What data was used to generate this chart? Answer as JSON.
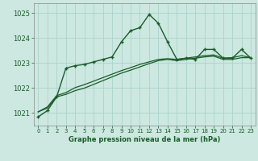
{
  "bg_color": "#cce8e0",
  "grid_color": "#aad4cc",
  "line_color": "#1a5c2a",
  "title": "Graphe pression niveau de la mer (hPa)",
  "xlim": [
    -0.5,
    23.5
  ],
  "ylim": [
    1020.5,
    1025.4
  ],
  "yticks": [
    1021,
    1022,
    1023,
    1024,
    1025
  ],
  "xticks": [
    0,
    1,
    2,
    3,
    4,
    5,
    6,
    7,
    8,
    9,
    10,
    11,
    12,
    13,
    14,
    15,
    16,
    17,
    18,
    19,
    20,
    21,
    22,
    23
  ],
  "series1_x": [
    0,
    1,
    2,
    3,
    4,
    5,
    6,
    7,
    8,
    9,
    10,
    11,
    12,
    13,
    14,
    15,
    16,
    17,
    18,
    19,
    20,
    21,
    22,
    23
  ],
  "series1_y": [
    1020.85,
    1021.1,
    1021.65,
    1022.8,
    1022.9,
    1022.95,
    1023.05,
    1023.15,
    1023.25,
    1023.85,
    1024.3,
    1024.42,
    1024.95,
    1024.6,
    1023.85,
    1023.15,
    1023.2,
    1023.15,
    1023.55,
    1023.55,
    1023.2,
    1023.2,
    1023.55,
    1023.2
  ],
  "series2_x": [
    0,
    1,
    2,
    3,
    4,
    5,
    6,
    7,
    8,
    9,
    10,
    11,
    12,
    13,
    14,
    15,
    16,
    17,
    18,
    19,
    20,
    21,
    22,
    23
  ],
  "series2_y": [
    1021.05,
    1021.2,
    1021.65,
    1021.75,
    1021.9,
    1022.0,
    1022.15,
    1022.3,
    1022.45,
    1022.6,
    1022.72,
    1022.85,
    1022.98,
    1023.1,
    1023.15,
    1023.1,
    1023.15,
    1023.2,
    1023.25,
    1023.28,
    1023.15,
    1023.15,
    1023.22,
    1023.22
  ],
  "series3_x": [
    0,
    1,
    2,
    3,
    4,
    5,
    6,
    7,
    8,
    9,
    10,
    11,
    12,
    13,
    14,
    15,
    16,
    17,
    18,
    19,
    20,
    21,
    22,
    23
  ],
  "series3_y": [
    1021.05,
    1021.25,
    1021.7,
    1021.82,
    1022.02,
    1022.14,
    1022.28,
    1022.42,
    1022.56,
    1022.7,
    1022.82,
    1022.95,
    1023.05,
    1023.15,
    1023.18,
    1023.15,
    1023.2,
    1023.25,
    1023.3,
    1023.33,
    1023.2,
    1023.22,
    1023.3,
    1023.22
  ]
}
